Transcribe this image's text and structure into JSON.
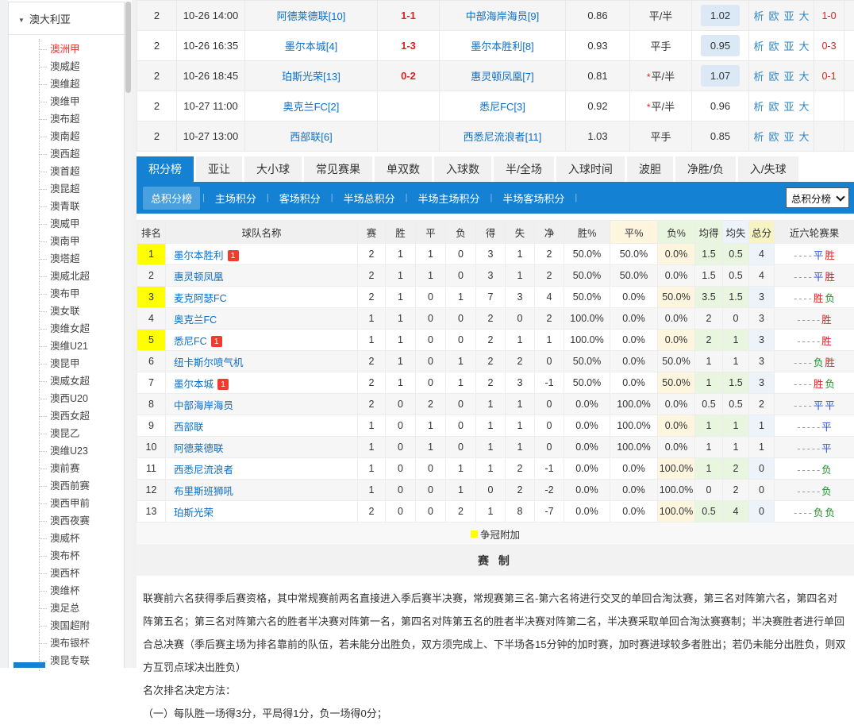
{
  "sidebar": {
    "header": "澳大利亚",
    "active_item": "澳洲甲",
    "items": [
      "澳洲甲",
      "澳威超",
      "澳维超",
      "澳维甲",
      "澳布超",
      "澳南超",
      "澳西超",
      "澳首超",
      "澳昆超",
      "澳青联",
      "澳威甲",
      "澳南甲",
      "澳塔超",
      "澳威北超",
      "澳布甲",
      "澳女联",
      "澳维女超",
      "澳维U21",
      "澳昆甲",
      "澳威女超",
      "澳西U20",
      "澳西女超",
      "澳昆乙",
      "澳维U23",
      "澳前赛",
      "澳西前赛",
      "澳西甲前",
      "澳西夜赛",
      "澳威杯",
      "澳布杯",
      "澳西杯",
      "澳维杯",
      "澳足总",
      "澳国超附",
      "澳布银杯",
      "澳昆专联"
    ]
  },
  "fixtures": {
    "rows": [
      {
        "round": "2",
        "time": "10-26 14:00",
        "home": "阿德莱德联[10]",
        "score": "1-1",
        "away": "中部海岸海员[9]",
        "odds_home": "0.86",
        "handicap": "平/半",
        "handicap_star": false,
        "odds_away": "1.02",
        "odds_away_highlight": true,
        "links": [
          "析",
          "欧",
          "亚",
          "大"
        ],
        "second_score": "1-0"
      },
      {
        "round": "2",
        "time": "10-26 16:35",
        "home": "墨尔本城[4]",
        "score": "1-3",
        "away": "墨尔本胜利[8]",
        "odds_home": "0.93",
        "handicap": "平手",
        "handicap_star": false,
        "odds_away": "0.95",
        "odds_away_highlight": true,
        "links": [
          "析",
          "欧",
          "亚",
          "大"
        ],
        "second_score": "0-3"
      },
      {
        "round": "2",
        "time": "10-26 18:45",
        "home": "珀斯光荣[13]",
        "score": "0-2",
        "away": "惠灵顿凤凰[7]",
        "odds_home": "0.81",
        "handicap": "平/半",
        "handicap_star": true,
        "odds_away": "1.07",
        "odds_away_highlight": true,
        "links": [
          "析",
          "欧",
          "亚",
          "大"
        ],
        "second_score": "0-1"
      },
      {
        "round": "2",
        "time": "10-27 11:00",
        "home": "奥克兰FC[2]",
        "score": "",
        "away": "悉尼FC[3]",
        "odds_home": "0.92",
        "handicap": "平/半",
        "handicap_star": true,
        "odds_away": "0.96",
        "odds_away_highlight": false,
        "links": [
          "析",
          "欧",
          "亚",
          "大"
        ],
        "second_score": ""
      },
      {
        "round": "2",
        "time": "10-27 13:00",
        "home": "西部联[6]",
        "score": "",
        "away": "西悉尼流浪者[11]",
        "odds_home": "1.03",
        "handicap": "平手",
        "handicap_star": false,
        "odds_away": "0.85",
        "odds_away_highlight": false,
        "links": [
          "析",
          "欧",
          "亚",
          "大"
        ],
        "second_score": ""
      }
    ]
  },
  "tabs": {
    "active": "积分榜",
    "items": [
      "积分榜",
      "亚让",
      "大小球",
      "常见赛果",
      "单双数",
      "入球数",
      "半/全场",
      "入球时间",
      "波胆",
      "净胜/负",
      "入/失球"
    ]
  },
  "subtabs": {
    "active": "总积分榜",
    "items": [
      "总积分榜",
      "主场积分",
      "客场积分",
      "半场总积分",
      "半场主场积分",
      "半场客场积分"
    ],
    "dropdown_value": "总积分榜"
  },
  "standings": {
    "headers": [
      "排名",
      "球队名称",
      "赛",
      "胜",
      "平",
      "负",
      "得",
      "失",
      "净",
      "胜%",
      "平%",
      "负%",
      "均得",
      "均失",
      "总分",
      "近六轮赛果"
    ],
    "rows": [
      {
        "rank": "1",
        "highlight": true,
        "team": "墨尔本胜利",
        "badge": "1",
        "stats": [
          "2",
          "1",
          "1",
          "0",
          "3",
          "1",
          "2",
          "50.0%",
          "50.0%",
          "0.0%",
          "1.5",
          "0.5",
          "4"
        ],
        "recent": [
          "-",
          "-",
          "-",
          "-",
          "平",
          "胜"
        ]
      },
      {
        "rank": "2",
        "highlight": true,
        "team": "惠灵顿凤凰",
        "badge": "",
        "stats": [
          "2",
          "1",
          "1",
          "0",
          "3",
          "1",
          "2",
          "50.0%",
          "50.0%",
          "0.0%",
          "1.5",
          "0.5",
          "4"
        ],
        "recent": [
          "-",
          "-",
          "-",
          "-",
          "平",
          "胜"
        ]
      },
      {
        "rank": "3",
        "highlight": true,
        "team": "麦克阿瑟FC",
        "badge": "",
        "stats": [
          "2",
          "1",
          "0",
          "1",
          "7",
          "3",
          "4",
          "50.0%",
          "0.0%",
          "50.0%",
          "3.5",
          "1.5",
          "3"
        ],
        "recent": [
          "-",
          "-",
          "-",
          "-",
          "胜",
          "负"
        ]
      },
      {
        "rank": "4",
        "highlight": true,
        "team": "奥克兰FC",
        "badge": "",
        "stats": [
          "1",
          "1",
          "0",
          "0",
          "2",
          "0",
          "2",
          "100.0%",
          "0.0%",
          "0.0%",
          "2",
          "0",
          "3"
        ],
        "recent": [
          "-",
          "-",
          "-",
          "-",
          "-",
          "胜"
        ]
      },
      {
        "rank": "5",
        "highlight": true,
        "team": "悉尼FC",
        "badge": "1",
        "stats": [
          "1",
          "1",
          "0",
          "0",
          "2",
          "1",
          "1",
          "100.0%",
          "0.0%",
          "0.0%",
          "2",
          "1",
          "3"
        ],
        "recent": [
          "-",
          "-",
          "-",
          "-",
          "-",
          "胜"
        ]
      },
      {
        "rank": "6",
        "highlight": true,
        "team": "纽卡斯尔喷气机",
        "badge": "",
        "stats": [
          "2",
          "1",
          "0",
          "1",
          "2",
          "2",
          "0",
          "50.0%",
          "0.0%",
          "50.0%",
          "1",
          "1",
          "3"
        ],
        "recent": [
          "-",
          "-",
          "-",
          "-",
          "负",
          "胜"
        ]
      },
      {
        "rank": "7",
        "highlight": false,
        "team": "墨尔本城",
        "badge": "1",
        "stats": [
          "2",
          "1",
          "0",
          "1",
          "2",
          "3",
          "-1",
          "50.0%",
          "0.0%",
          "50.0%",
          "1",
          "1.5",
          "3"
        ],
        "recent": [
          "-",
          "-",
          "-",
          "-",
          "胜",
          "负"
        ]
      },
      {
        "rank": "8",
        "highlight": false,
        "team": "中部海岸海员",
        "badge": "",
        "stats": [
          "2",
          "0",
          "2",
          "0",
          "1",
          "1",
          "0",
          "0.0%",
          "100.0%",
          "0.0%",
          "0.5",
          "0.5",
          "2"
        ],
        "recent": [
          "-",
          "-",
          "-",
          "-",
          "平",
          "平"
        ]
      },
      {
        "rank": "9",
        "highlight": false,
        "team": "西部联",
        "badge": "",
        "stats": [
          "1",
          "0",
          "1",
          "0",
          "1",
          "1",
          "0",
          "0.0%",
          "100.0%",
          "0.0%",
          "1",
          "1",
          "1"
        ],
        "recent": [
          "-",
          "-",
          "-",
          "-",
          "-",
          "平"
        ]
      },
      {
        "rank": "10",
        "highlight": false,
        "team": "阿德莱德联",
        "badge": "",
        "stats": [
          "1",
          "0",
          "1",
          "0",
          "1",
          "1",
          "0",
          "0.0%",
          "100.0%",
          "0.0%",
          "1",
          "1",
          "1"
        ],
        "recent": [
          "-",
          "-",
          "-",
          "-",
          "-",
          "平"
        ]
      },
      {
        "rank": "11",
        "highlight": false,
        "team": "西悉尼流浪者",
        "badge": "",
        "stats": [
          "1",
          "0",
          "0",
          "1",
          "1",
          "2",
          "-1",
          "0.0%",
          "0.0%",
          "100.0%",
          "1",
          "2",
          "0"
        ],
        "recent": [
          "-",
          "-",
          "-",
          "-",
          "-",
          "负"
        ]
      },
      {
        "rank": "12",
        "highlight": false,
        "team": "布里斯班狮吼",
        "badge": "",
        "stats": [
          "1",
          "0",
          "0",
          "1",
          "0",
          "2",
          "-2",
          "0.0%",
          "0.0%",
          "100.0%",
          "0",
          "2",
          "0"
        ],
        "recent": [
          "-",
          "-",
          "-",
          "-",
          "-",
          "负"
        ]
      },
      {
        "rank": "13",
        "highlight": false,
        "team": "珀斯光荣",
        "badge": "",
        "stats": [
          "2",
          "0",
          "0",
          "2",
          "1",
          "8",
          "-7",
          "0.0%",
          "0.0%",
          "100.0%",
          "0.5",
          "4",
          "0"
        ],
        "recent": [
          "-",
          "-",
          "-",
          "-",
          "负",
          "负"
        ]
      }
    ],
    "legend": "争冠附加"
  },
  "rules": {
    "title": "赛 制",
    "paragraph": "联赛前六名获得季后赛资格，其中常规赛前两名直接进入季后赛半决赛，常规赛第三名-第六名将进行交叉的单回合淘汰赛，第三名对阵第六名，第四名对阵第五名；第三名对阵第六名的胜者半决赛对阵第一名，第四名对阵第五名的胜者半决赛对阵第二名，半决赛采取单回合淘汰赛赛制；半决赛胜者进行单回合总决赛（季后赛主场为排名靠前的队伍，若未能分出胜负，双方须完成上、下半场各15分钟的加时赛，加时赛进球较多者胜出；若仍未能分出胜负，则双方互罚点球决出胜负）",
    "method_title": "名次排名决定方法：",
    "method_items": [
      "（一）每队胜一场得3分，平局得1分，负一场得0分；"
    ]
  },
  "colors": {
    "accent_blue": "#1581d3",
    "subtab_active_blue": "#49a0de",
    "link_blue": "#0d6fc8",
    "score_red": "#e02020",
    "draw_blue": "#2850d9",
    "loss_green": "#149025",
    "rank_yellow": "#ffff00",
    "odds_highlight": "#dbe9f7"
  }
}
